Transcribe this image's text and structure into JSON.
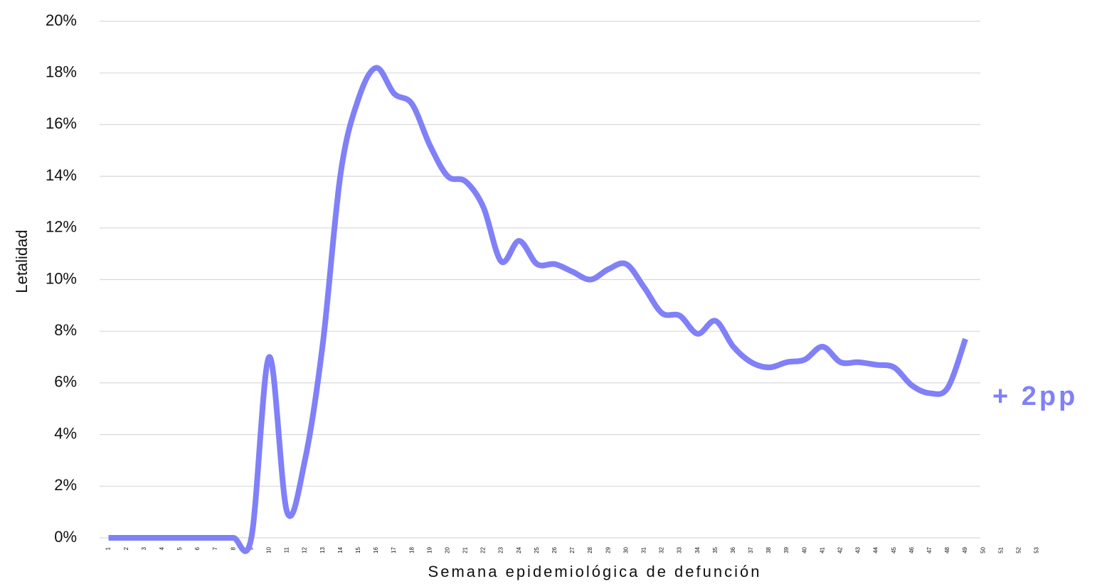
{
  "chart_data": {
    "type": "line",
    "y_label": "Letalidad",
    "x_label": "Semana epidemiológica de defunción",
    "annotation": "+ 2pp",
    "categories": [
      "1",
      "2",
      "3",
      "4",
      "5",
      "6",
      "7",
      "8",
      "9",
      "10",
      "11",
      "12",
      "13",
      "14",
      "15",
      "16",
      "17",
      "18",
      "19",
      "20",
      "21",
      "22",
      "23",
      "24",
      "25",
      "26",
      "27",
      "28",
      "29",
      "30",
      "31",
      "32",
      "33",
      "34",
      "35",
      "36",
      "37",
      "38",
      "39",
      "40",
      "41",
      "42",
      "43",
      "44",
      "45",
      "46",
      "47",
      "48",
      "49",
      "50",
      "51",
      "52",
      "53"
    ],
    "series": [
      {
        "name": "Letalidad",
        "color": "#8080f8",
        "values": [
          0,
          0,
          0,
          0,
          0,
          0,
          0,
          0,
          0,
          7.0,
          1.0,
          3.0,
          7.5,
          14.1,
          17.0,
          18.2,
          17.2,
          16.8,
          15.2,
          14.0,
          13.8,
          12.8,
          10.7,
          11.5,
          10.6,
          10.6,
          10.3,
          10.0,
          10.4,
          10.6,
          9.7,
          8.7,
          8.6,
          7.9,
          8.4,
          7.4,
          6.8,
          6.6,
          6.8,
          6.9,
          7.4,
          6.8,
          6.8,
          6.7,
          6.6,
          5.9,
          5.6,
          5.8,
          7.7,
          null,
          null,
          null,
          null
        ]
      }
    ],
    "ylim": [
      0,
      20
    ],
    "yticks": [
      {
        "value": 0,
        "label": "0%"
      },
      {
        "value": 2,
        "label": "2%"
      },
      {
        "value": 4,
        "label": "4%"
      },
      {
        "value": 6,
        "label": "6%"
      },
      {
        "value": 8,
        "label": "8%"
      },
      {
        "value": 10,
        "label": "10%"
      },
      {
        "value": 12,
        "label": "12%"
      },
      {
        "value": 14,
        "label": "14%"
      },
      {
        "value": 16,
        "label": "16%"
      },
      {
        "value": 18,
        "label": "18%"
      },
      {
        "value": 20,
        "label": "20%"
      }
    ],
    "grid": true
  }
}
